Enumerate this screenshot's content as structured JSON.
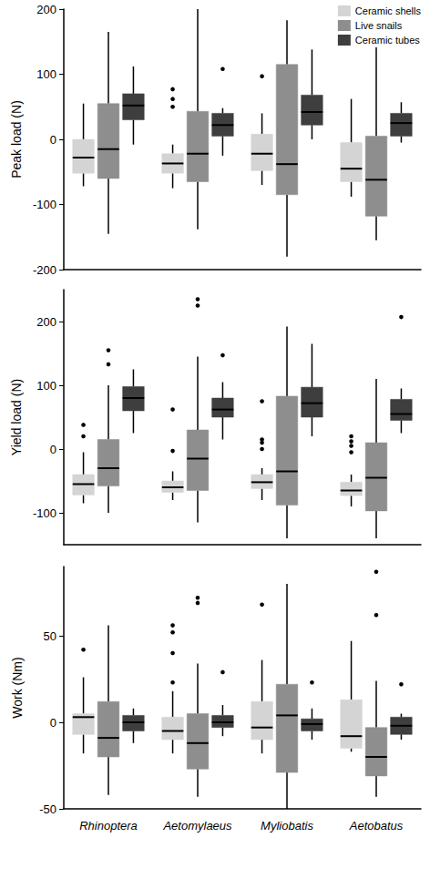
{
  "chart_data": [
    {
      "type": "boxplot",
      "ylabel": "Peak load (N)",
      "categories": [
        "Rhinoptera",
        "Aetomylaeus",
        "Myliobatis",
        "Aetobatus"
      ],
      "ylim": [
        -200,
        200
      ],
      "yticks": [
        -200,
        -100,
        0,
        100,
        200
      ],
      "grid": false,
      "legend": "upper right",
      "tick_labels": "y",
      "series": [
        {
          "name": "Ceramic shells",
          "color": "#d4d4d4",
          "values": [
            [
              -72,
              -52,
              -28,
              0,
              55
            ],
            [
              -75,
              -52,
              -37,
              -22,
              -8
            ],
            [
              -70,
              -48,
              -22,
              8,
              40
            ],
            [
              -88,
              -65,
              -45,
              -5,
              62
            ]
          ],
          "outliers": [
            [],
            [
              50,
              62,
              77
            ],
            [
              97
            ],
            []
          ]
        },
        {
          "name": "Live snails",
          "color": "#8e8e8e",
          "values": [
            [
              -145,
              -60,
              -15,
              55,
              165
            ],
            [
              -138,
              -65,
              -22,
              43,
              208
            ],
            [
              -180,
              -85,
              -38,
              115,
              183
            ],
            [
              -155,
              -118,
              -62,
              5,
              145
            ]
          ],
          "outliers": [
            [],
            [],
            [],
            []
          ]
        },
        {
          "name": "Ceramic tubes",
          "color": "#3e3e3e",
          "values": [
            [
              -8,
              30,
              52,
              70,
              112
            ],
            [
              -25,
              5,
              22,
              40,
              48
            ],
            [
              0,
              22,
              42,
              68,
              138
            ],
            [
              -5,
              5,
              25,
              40,
              57
            ]
          ],
          "outliers": [
            [],
            [
              108
            ],
            [],
            []
          ]
        }
      ]
    },
    {
      "type": "boxplot",
      "ylabel": "Yield load (N)",
      "categories": [
        "Rhinoptera",
        "Aetomylaeus",
        "Myliobatis",
        "Aetobatus"
      ],
      "ylim": [
        -150,
        250
      ],
      "yticks": [
        -100,
        0,
        100,
        200
      ],
      "grid": false,
      "tick_labels": "y",
      "series": [
        {
          "name": "Ceramic shells",
          "color": "#d4d4d4",
          "values": [
            [
              -85,
              -72,
              -55,
              -40,
              -5
            ],
            [
              -80,
              -68,
              -60,
              -50,
              -35
            ],
            [
              -80,
              -62,
              -52,
              -40,
              -30
            ],
            [
              -90,
              -73,
              -65,
              -52,
              -40
            ]
          ],
          "outliers": [
            [
              20,
              38
            ],
            [
              -3,
              62
            ],
            [
              0,
              10,
              15,
              75
            ],
            [
              -5,
              5,
              12,
              20
            ]
          ]
        },
        {
          "name": "Live snails",
          "color": "#8e8e8e",
          "values": [
            [
              -100,
              -58,
              -30,
              15,
              100
            ],
            [
              -115,
              -65,
              -15,
              30,
              145
            ],
            [
              -140,
              -88,
              -35,
              83,
              192
            ],
            [
              -140,
              -97,
              -45,
              10,
              110
            ]
          ],
          "outliers": [
            [
              133,
              155
            ],
            [
              225,
              235
            ],
            [],
            []
          ]
        },
        {
          "name": "Ceramic tubes",
          "color": "#3e3e3e",
          "values": [
            [
              25,
              60,
              80,
              98,
              125
            ],
            [
              15,
              50,
              62,
              80,
              105
            ],
            [
              20,
              50,
              72,
              97,
              165
            ],
            [
              25,
              45,
              55,
              78,
              95
            ]
          ],
          "outliers": [
            [],
            [
              147
            ],
            [],
            [
              207
            ]
          ]
        }
      ]
    },
    {
      "type": "boxplot",
      "ylabel": "Work (Nm)",
      "categories": [
        "Rhinoptera",
        "Aetomylaeus",
        "Myliobatis",
        "Aetobatus"
      ],
      "ylim": [
        -50,
        90
      ],
      "yticks": [
        -50,
        0,
        50
      ],
      "grid": false,
      "series": [
        {
          "name": "Ceramic shells",
          "color": "#d4d4d4",
          "values": [
            [
              -18,
              -7,
              3,
              5,
              26
            ],
            [
              -18,
              -10,
              -5,
              3,
              18
            ],
            [
              -18,
              -10,
              -3,
              12,
              36
            ],
            [
              -17,
              -15,
              -8,
              13,
              47
            ]
          ],
          "outliers": [
            [
              42
            ],
            [
              23,
              40,
              52,
              56
            ],
            [
              68
            ],
            []
          ]
        },
        {
          "name": "Live snails",
          "color": "#8e8e8e",
          "values": [
            [
              -42,
              -20,
              -9,
              12,
              56
            ],
            [
              -43,
              -27,
              -12,
              5,
              34
            ],
            [
              -50,
              -29,
              4,
              22,
              80
            ],
            [
              -43,
              -31,
              -20,
              -3,
              24
            ]
          ],
          "outliers": [
            [],
            [
              69,
              72
            ],
            [],
            [
              62,
              87
            ]
          ]
        },
        {
          "name": "Ceramic tubes",
          "color": "#3e3e3e",
          "values": [
            [
              -12,
              -5,
              0,
              4,
              8
            ],
            [
              -8,
              -3,
              0,
              4,
              10
            ],
            [
              -10,
              -5,
              -1,
              2,
              8
            ],
            [
              -10,
              -7,
              -2,
              3,
              5
            ]
          ],
          "outliers": [
            [],
            [
              29
            ],
            [
              23
            ],
            [
              22
            ]
          ]
        }
      ]
    }
  ]
}
